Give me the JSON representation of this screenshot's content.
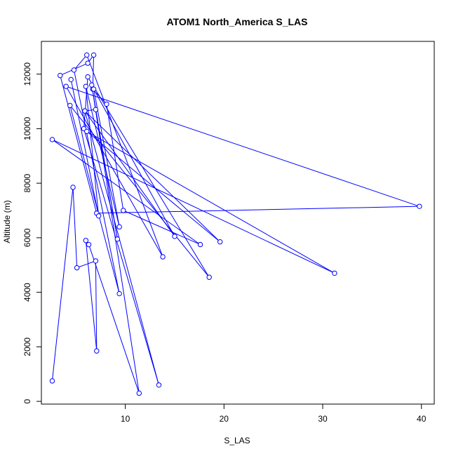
{
  "chart_data": {
    "type": "line",
    "title": "ATOM1 North_America S_LAS",
    "xlabel": "S_LAS",
    "ylabel": "Altitude (m)",
    "xlim": [
      1.5,
      41.3
    ],
    "ylim": [
      -100,
      13200
    ],
    "xticks": [
      10,
      20,
      30,
      40
    ],
    "yticks": [
      0,
      2000,
      4000,
      6000,
      8000,
      10000,
      12000
    ],
    "grid": false,
    "legend": "none",
    "marker": "open-circle",
    "color": "#0000ff",
    "series": [
      {
        "x": [
          2.6,
          4.7,
          5.1,
          7.0,
          7.1,
          6.0,
          6.3,
          11.4,
          6.6,
          9.2,
          7.0,
          5.9,
          13.4,
          5.8,
          6.2,
          18.5,
          4.4,
          9.4,
          4.8,
          6.1,
          13.8,
          4.0,
          39.8,
          7.1,
          3.4,
          6.2,
          6.8,
          6.7,
          8.1,
          9.8,
          17.6,
          2.6,
          31.2,
          6.1,
          19.6,
          5.9,
          15.0,
          6.8,
          9.4,
          6.0,
          7.3,
          4.5
        ],
        "y": [
          750,
          7850,
          4900,
          5150,
          1850,
          5900,
          5750,
          300,
          11600,
          5950,
          10700,
          10650,
          600,
          10000,
          11900,
          4550,
          10850,
          3950,
          12150,
          12700,
          5300,
          11550,
          7150,
          6900,
          11950,
          12400,
          12700,
          11450,
          10900,
          7000,
          5750,
          9600,
          4700,
          9900,
          5850,
          10650,
          6050,
          11450,
          6400,
          11550,
          6800,
          11800
        ]
      }
    ]
  }
}
